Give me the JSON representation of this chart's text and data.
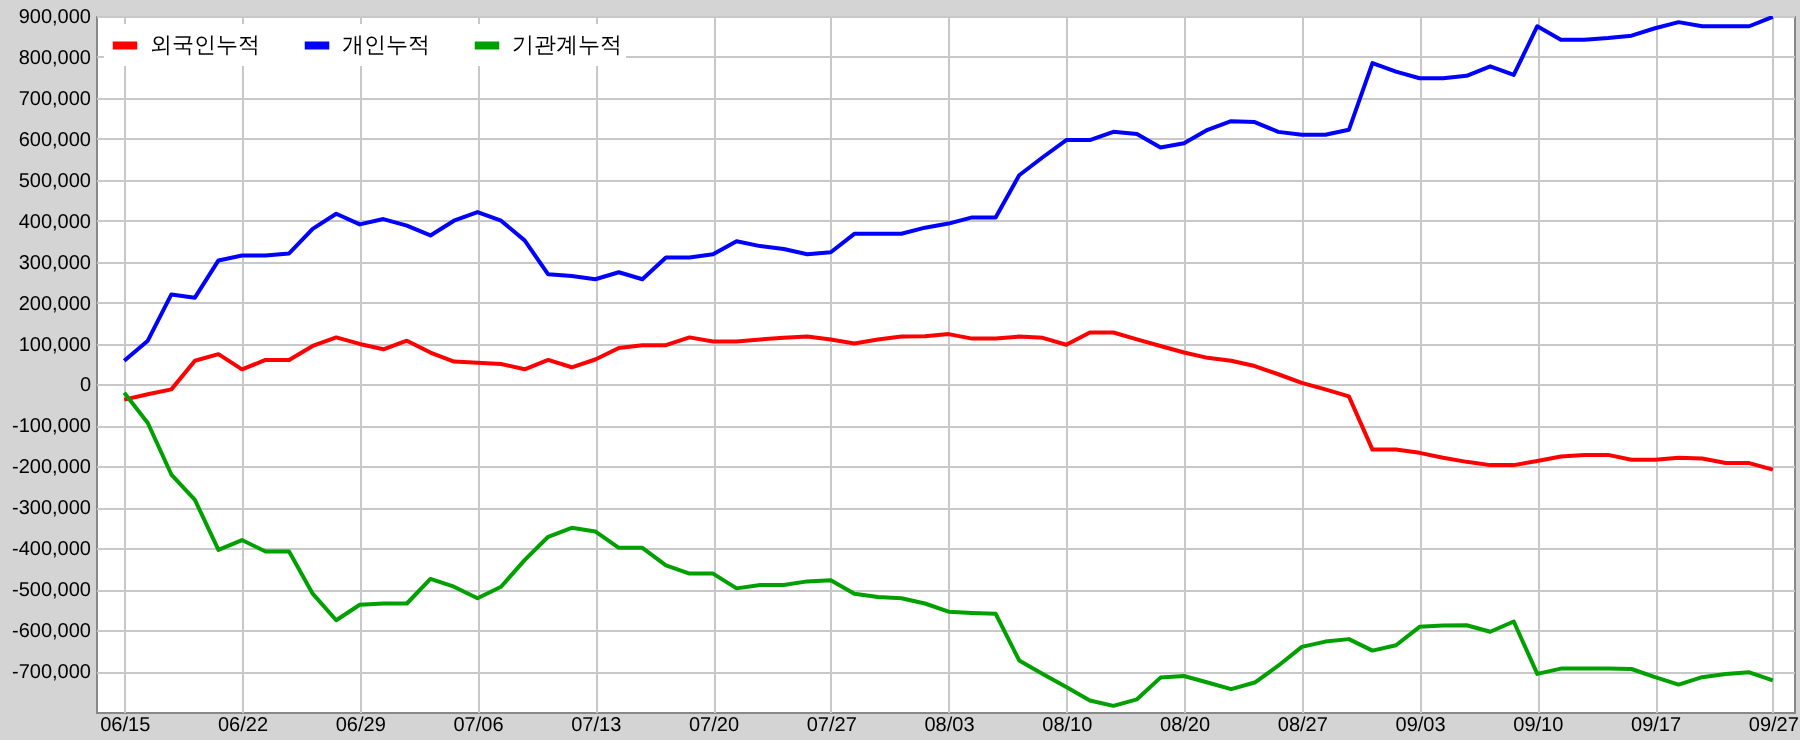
{
  "chart_data": {
    "type": "line",
    "categories": [
      "06/15",
      null,
      null,
      null,
      null,
      "06/22",
      null,
      null,
      null,
      null,
      "06/29",
      null,
      null,
      null,
      null,
      "07/06",
      null,
      null,
      null,
      null,
      "07/13",
      null,
      null,
      null,
      null,
      "07/20",
      null,
      null,
      null,
      null,
      "07/27",
      null,
      null,
      null,
      null,
      "08/03",
      null,
      null,
      null,
      null,
      "08/10",
      null,
      null,
      null,
      null,
      "08/20",
      null,
      null,
      null,
      null,
      "08/27",
      null,
      null,
      null,
      null,
      "09/03",
      null,
      null,
      null,
      null,
      "09/10",
      null,
      null,
      null,
      null,
      "09/17",
      null,
      null,
      null,
      null,
      "09/27"
    ],
    "series": [
      {
        "name": "외국인누적",
        "color": "#ff0000",
        "values": [
          -37000,
          -24000,
          -12000,
          58000,
          74000,
          37000,
          60000,
          60000,
          94000,
          115000,
          99000,
          86000,
          107000,
          78000,
          56000,
          53000,
          50000,
          37000,
          60000,
          42000,
          61000,
          89000,
          96000,
          96000,
          115000,
          105000,
          105000,
          110000,
          114000,
          117000,
          110000,
          100000,
          110000,
          117000,
          118000,
          123000,
          112000,
          112000,
          117000,
          114000,
          97000,
          127000,
          127000,
          110000,
          94000,
          78000,
          65000,
          58000,
          45000,
          25000,
          4000,
          -12000,
          -29000,
          -159000,
          -159000,
          -167000,
          -179000,
          -189000,
          -197000,
          -197000,
          -187000,
          -176000,
          -172000,
          -172000,
          -184000,
          -184000,
          -179000,
          -181000,
          -192000,
          -192000,
          -208000
        ]
      },
      {
        "name": "개인누적",
        "color": "#0000ff",
        "values": [
          58000,
          107000,
          220000,
          212000,
          303000,
          315000,
          315000,
          320000,
          380000,
          417000,
          391000,
          404000,
          388000,
          364000,
          400000,
          421000,
          400000,
          352000,
          269000,
          265000,
          257000,
          274000,
          257000,
          310000,
          310000,
          318000,
          350000,
          338000,
          331000,
          318000,
          323000,
          368000,
          368000,
          368000,
          383000,
          393000,
          408000,
          408000,
          511000,
          555000,
          597000,
          597000,
          617000,
          612000,
          579000,
          589000,
          622000,
          643000,
          641000,
          617000,
          610000,
          610000,
          622000,
          785000,
          764000,
          748000,
          748000,
          754000,
          777000,
          756000,
          875000,
          842000,
          842000,
          846000,
          852000,
          870000,
          885000,
          875000,
          875000,
          875000,
          898000
        ]
      },
      {
        "name": "기관계누적",
        "color": "#00a000",
        "values": [
          -20000,
          -94000,
          -220000,
          -282000,
          -404000,
          -380000,
          -408000,
          -408000,
          -511000,
          -576000,
          -538000,
          -535000,
          -535000,
          -475000,
          -494000,
          -522000,
          -494000,
          -429000,
          -372000,
          -350000,
          -359000,
          -399000,
          -399000,
          -442000,
          -462000,
          -462000,
          -498000,
          -490000,
          -490000,
          -481000,
          -478000,
          -511000,
          -519000,
          -522000,
          -535000,
          -555000,
          -558000,
          -560000,
          -674000,
          -707000,
          -739000,
          -772000,
          -785000,
          -769000,
          -716000,
          -712000,
          -728000,
          -744000,
          -728000,
          -687000,
          -641000,
          -628000,
          -622000,
          -650000,
          -637000,
          -592000,
          -589000,
          -588000,
          -604000,
          -579000,
          -707000,
          -694000,
          -694000,
          -694000,
          -695000,
          -715000,
          -733000,
          -715000,
          -707000,
          -703000,
          -723000
        ]
      }
    ],
    "ylim": [
      -800000,
      900000
    ],
    "yticks": [
      {
        "value": -700000,
        "label": "-700,000"
      },
      {
        "value": -600000,
        "label": "-600,000"
      },
      {
        "value": -500000,
        "label": "-500,000"
      },
      {
        "value": -400000,
        "label": "-400,000"
      },
      {
        "value": -300000,
        "label": "-300,000"
      },
      {
        "value": -200000,
        "label": "-200,000"
      },
      {
        "value": -100000,
        "label": "-100,000"
      },
      0,
      {
        "value": 100000,
        "label": "100,000"
      },
      {
        "value": 200000,
        "label": "200,000"
      },
      {
        "value": 300000,
        "label": "300,000"
      },
      {
        "value": 400000,
        "label": "400,000"
      },
      {
        "value": 500000,
        "label": "500,000"
      },
      {
        "value": 600000,
        "label": "600,000"
      },
      {
        "value": 700000,
        "label": "700,000"
      },
      {
        "value": 800000,
        "label": "800,000"
      },
      {
        "value": 900000,
        "label": "900,000"
      }
    ],
    "grid": true,
    "legend": "top left",
    "line_style": "solid"
  }
}
